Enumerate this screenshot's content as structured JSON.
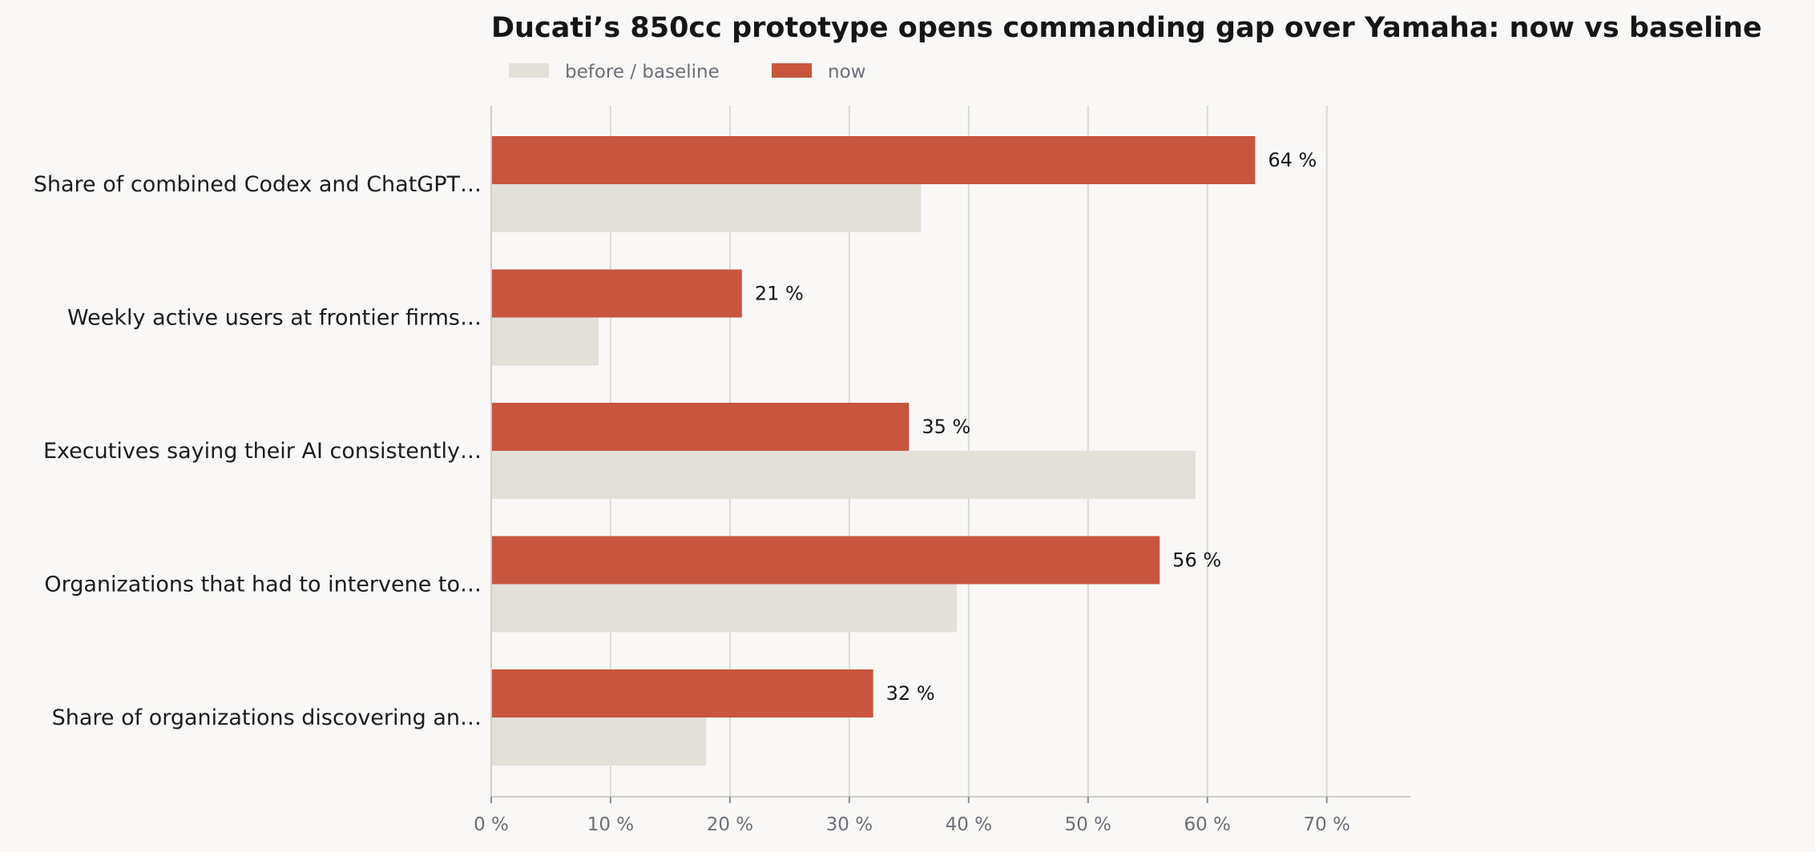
{
  "chart_data": {
    "type": "bar",
    "orientation": "horizontal",
    "title": "Ducati’s 850cc prototype opens commanding gap over Yamaha: now vs baseline",
    "categories": [
      "Share of combined Codex and ChatGPT…",
      "Weekly active users at frontier firms…",
      "Executives saying their AI consistently…",
      "Organizations that had to intervene to…",
      "Share of organizations discovering an…"
    ],
    "series": [
      {
        "name": "now",
        "values": [
          64,
          21,
          35,
          56,
          32
        ],
        "color": "#c8553d"
      },
      {
        "name": "before / baseline",
        "values": [
          36,
          9,
          59,
          39,
          18
        ],
        "color": "#e3e0da"
      }
    ],
    "value_labels": [
      "64 %",
      "21 %",
      "35 %",
      "56 %",
      "32 %"
    ],
    "legend": {
      "placement": "top-left",
      "entries": [
        "before / baseline",
        "now"
      ]
    },
    "xlim": [
      0,
      77
    ],
    "xticks": [
      0,
      10,
      20,
      30,
      40,
      50,
      60,
      70
    ],
    "xtick_labels": [
      "0 %",
      "10 %",
      "20 %",
      "30 %",
      "40 %",
      "50 %",
      "60 %",
      "70 %"
    ],
    "grid": true,
    "xlabel": "",
    "ylabel": ""
  },
  "colors": {
    "background": "#f9f8f6",
    "now": "#c8553d",
    "baseline": "#e3e0da",
    "grid": "#dcdad6",
    "axis": "#cfcdc9"
  }
}
